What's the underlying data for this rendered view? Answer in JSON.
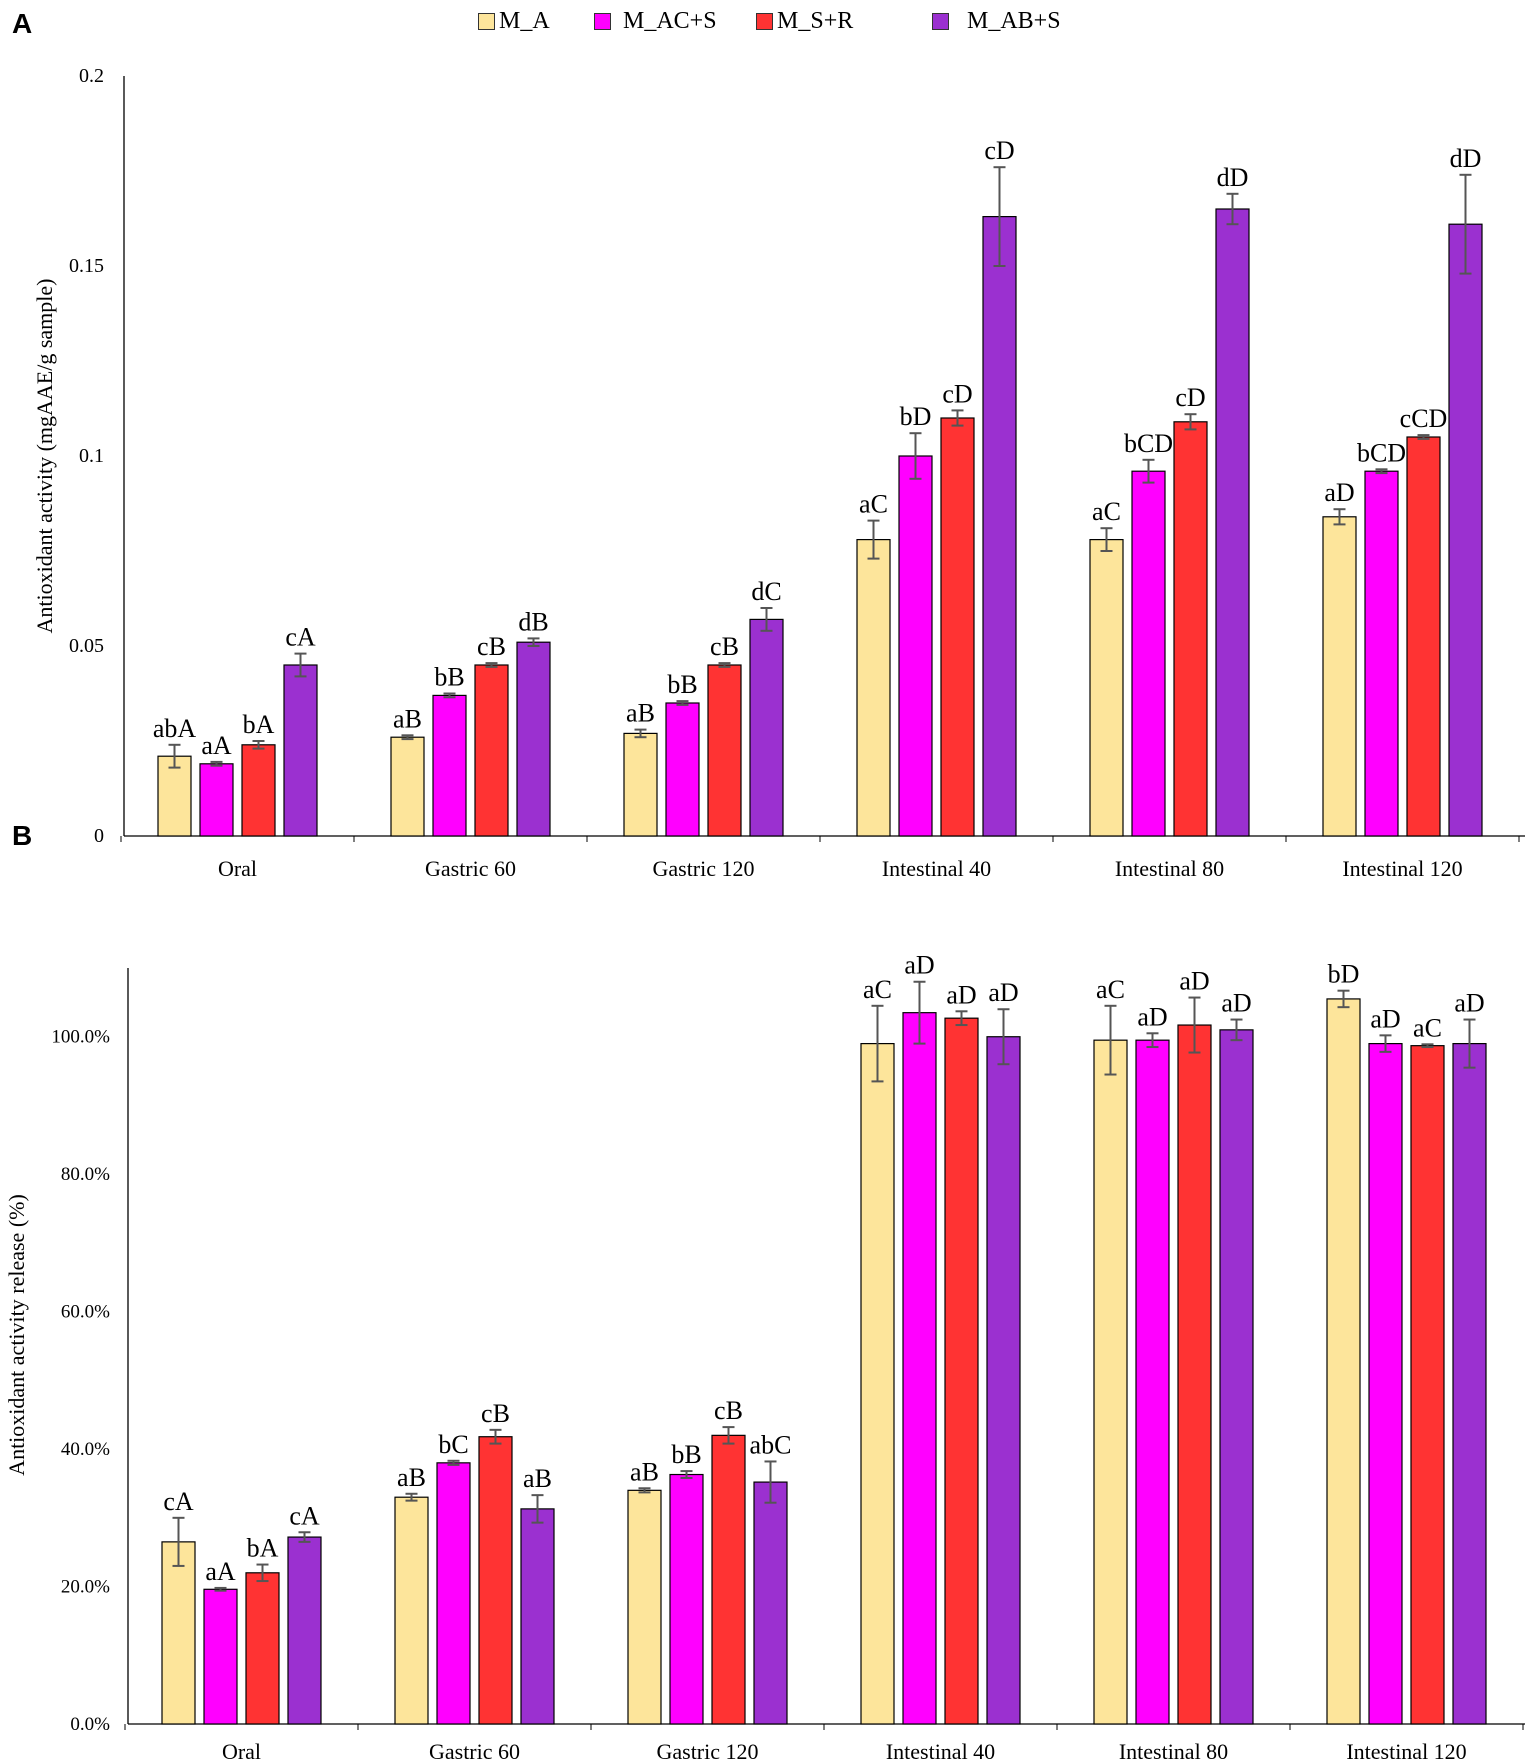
{
  "figure": {
    "panel_a_letter": "A",
    "panel_b_letter": "B"
  },
  "legend": [
    {
      "name": "M_A",
      "color": "#fde59b"
    },
    {
      "name": "M_AC+S",
      "color": "#ff00ff"
    },
    {
      "name": "M_S+R",
      "color": "#ff3333"
    },
    {
      "name": "M_AB+S",
      "color": "#9b30d0"
    }
  ],
  "chart_data": [
    {
      "type": "bar",
      "panel": "A",
      "ylabel": "Antioxidant activity (mgAAE/g sample)",
      "ylim": [
        0,
        0.2
      ],
      "yticks": [
        "0",
        "0.05",
        "0.1",
        "0.15",
        "0.2"
      ],
      "ytick_values": [
        0,
        0.05,
        0.1,
        0.15,
        0.2
      ],
      "categories": [
        "Oral",
        "Gastric 60",
        "Gastric 120",
        "Intestinal 40",
        "Intestinal 80",
        "Intestinal 120"
      ],
      "series": [
        {
          "name": "M_A",
          "color": "#fde59b",
          "values": [
            0.021,
            0.026,
            0.027,
            0.078,
            0.078,
            0.084
          ],
          "errors": [
            0.003,
            0.0005,
            0.001,
            0.005,
            0.003,
            0.002
          ],
          "labels": [
            "abA",
            "aB",
            "aB",
            "aC",
            "aC",
            "aD"
          ]
        },
        {
          "name": "M_AC+S",
          "color": "#ff00ff",
          "values": [
            0.019,
            0.037,
            0.035,
            0.1,
            0.096,
            0.096
          ],
          "errors": [
            0.0005,
            0.0005,
            0.0005,
            0.006,
            0.003,
            0.0005
          ],
          "labels": [
            "aA",
            "bB",
            "bB",
            "bD",
            "bCD",
            "bCD"
          ]
        },
        {
          "name": "M_S+R",
          "color": "#ff3333",
          "values": [
            0.024,
            0.045,
            0.045,
            0.11,
            0.109,
            0.105
          ],
          "errors": [
            0.001,
            0.0005,
            0.0005,
            0.002,
            0.002,
            0.0005
          ],
          "labels": [
            "bA",
            "cB",
            "cB",
            "cD",
            "cD",
            "cCD"
          ]
        },
        {
          "name": "M_AB+S",
          "color": "#9b30d0",
          "values": [
            0.045,
            0.051,
            0.057,
            0.163,
            0.165,
            0.161
          ],
          "errors": [
            0.003,
            0.001,
            0.003,
            0.013,
            0.004,
            0.013
          ],
          "labels": [
            "cA",
            "dB",
            "dC",
            "cD",
            "dD",
            "dD"
          ]
        }
      ]
    },
    {
      "type": "bar",
      "panel": "B",
      "ylabel": "Antioxidant activity release (%)",
      "ylim": [
        0,
        1.1
      ],
      "yticks": [
        "0.0%",
        "20.0%",
        "40.0%",
        "60.0%",
        "80.0%",
        "100.0%"
      ],
      "ytick_values": [
        0,
        0.2,
        0.4,
        0.6,
        0.8,
        1.0
      ],
      "categories": [
        "Oral",
        "Gastric 60",
        "Gastric 120",
        "Intestinal 40",
        "Intestinal 80",
        "Intestinal 120"
      ],
      "series": [
        {
          "name": "M_A",
          "color": "#fde59b",
          "values": [
            0.265,
            0.33,
            0.34,
            0.99,
            0.995,
            1.055
          ],
          "errors": [
            0.035,
            0.005,
            0.003,
            0.055,
            0.05,
            0.012
          ],
          "labels": [
            "cA",
            "aB",
            "aB",
            "aC",
            "aC",
            "bD"
          ]
        },
        {
          "name": "M_AC+S",
          "color": "#ff00ff",
          "values": [
            0.196,
            0.38,
            0.363,
            1.035,
            0.995,
            0.99
          ],
          "errors": [
            0.002,
            0.003,
            0.005,
            0.045,
            0.01,
            0.012
          ],
          "labels": [
            "aA",
            "bC",
            "bB",
            "aD",
            "aD",
            "aD"
          ]
        },
        {
          "name": "M_S+R",
          "color": "#ff3333",
          "values": [
            0.22,
            0.418,
            0.42,
            1.027,
            1.017,
            0.987
          ],
          "errors": [
            0.012,
            0.01,
            0.012,
            0.01,
            0.04,
            0.002
          ],
          "labels": [
            "bA",
            "cB",
            "cB",
            "aD",
            "aD",
            "aC"
          ]
        },
        {
          "name": "M_AB+S",
          "color": "#9b30d0",
          "values": [
            0.272,
            0.313,
            0.352,
            1.0,
            1.01,
            0.99
          ],
          "errors": [
            0.007,
            0.02,
            0.03,
            0.04,
            0.015,
            0.035
          ],
          "labels": [
            "cA",
            "aB",
            "abC",
            "aD",
            "aD",
            "aD"
          ]
        }
      ]
    }
  ]
}
